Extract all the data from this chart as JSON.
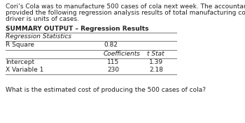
{
  "intro_text_line1": "Cori’s Cola was to manufacture 500 cases of cola next week. The accountant",
  "intro_text_line2": "provided the following regression analysis results of total manufacturing costs. Cost",
  "intro_text_line3": "driver is units of cases.",
  "summary_title": "SUMMARY OUTPUT – Regression Results",
  "table_header_col1": "Regression Statistics",
  "row_rsquare_label": "R Square",
  "row_rsquare_value": "0.82",
  "col_coefficients": "Coefficients",
  "col_tstat": "t Stat",
  "row_intercept_label": "Intercept",
  "row_intercept_coeff": "115",
  "row_intercept_tstat": "1.39",
  "row_xvar_label": "X Variable 1",
  "row_xvar_coeff": "230",
  "row_xvar_tstat": "2.18",
  "question_text": "What is the estimated cost of producing the 500 cases of cola?",
  "bg_color": "#ffffff",
  "text_color": "#222222",
  "line_color": "#888888",
  "font_size": 6.5
}
